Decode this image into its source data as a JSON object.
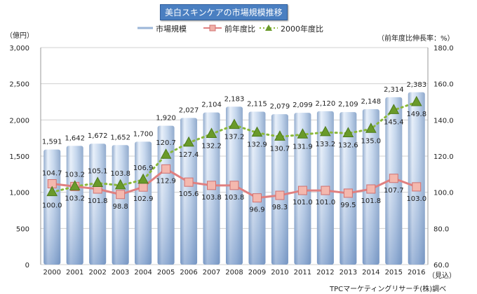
{
  "chart_data": {
    "type": "bar+line",
    "title": "美白スキンケアの市場規模推移",
    "y_left_label": "（億円）",
    "y_right_label": "（前年度比伸長率：%）",
    "y_left_range": [
      0,
      3000
    ],
    "y_right_range": [
      60.0,
      180.0
    ],
    "y_left_ticks": [
      "0",
      "500",
      "1,000",
      "1,500",
      "2,000",
      "2,500",
      "3,000"
    ],
    "y_right_ticks": [
      "60.0",
      "80.0",
      "100.0",
      "120.0",
      "140.0",
      "160.0",
      "180.0"
    ],
    "categories": [
      "2000",
      "2001",
      "2002",
      "2003",
      "2004",
      "2005",
      "2006",
      "2007",
      "2008",
      "2009",
      "2010",
      "2011",
      "2012",
      "2013",
      "2014",
      "2015",
      "2016"
    ],
    "forecast_note": "（見込）",
    "series": [
      {
        "name": "市場規模",
        "type": "bar",
        "axis": "left",
        "color": "#b8cde8",
        "values": [
          1591,
          1642,
          1672,
          1652,
          1700,
          1920,
          2027,
          2104,
          2183,
          2115,
          2079,
          2099,
          2120,
          2109,
          2148,
          2314,
          2383
        ],
        "labels": [
          "1,591",
          "1,642",
          "1,672",
          "1,652",
          "1,700",
          "1,920",
          "2,027",
          "2,104",
          "2,183",
          "2,115",
          "2,079",
          "2,099",
          "2,120",
          "2,109",
          "2,148",
          "2,314",
          "2,383"
        ]
      },
      {
        "name": "前年度比",
        "type": "line",
        "axis": "right",
        "color": "#e08080",
        "values": [
          104.7,
          103.2,
          101.8,
          98.8,
          102.9,
          112.9,
          105.6,
          103.8,
          103.8,
          96.9,
          98.3,
          101.0,
          101.0,
          99.5,
          101.8,
          107.7,
          103.0
        ]
      },
      {
        "name": "2000年度比",
        "type": "line",
        "axis": "right",
        "color": "#8ab83a",
        "values": [
          100.0,
          103.2,
          105.1,
          103.8,
          106.9,
          120.7,
          127.4,
          132.2,
          137.2,
          132.9,
          130.7,
          131.9,
          133.2,
          132.6,
          135.0,
          145.4,
          149.8
        ]
      }
    ],
    "legend_position": "top-center",
    "grid": true,
    "source": "TPCマーケティングリサーチ(株)調べ"
  }
}
